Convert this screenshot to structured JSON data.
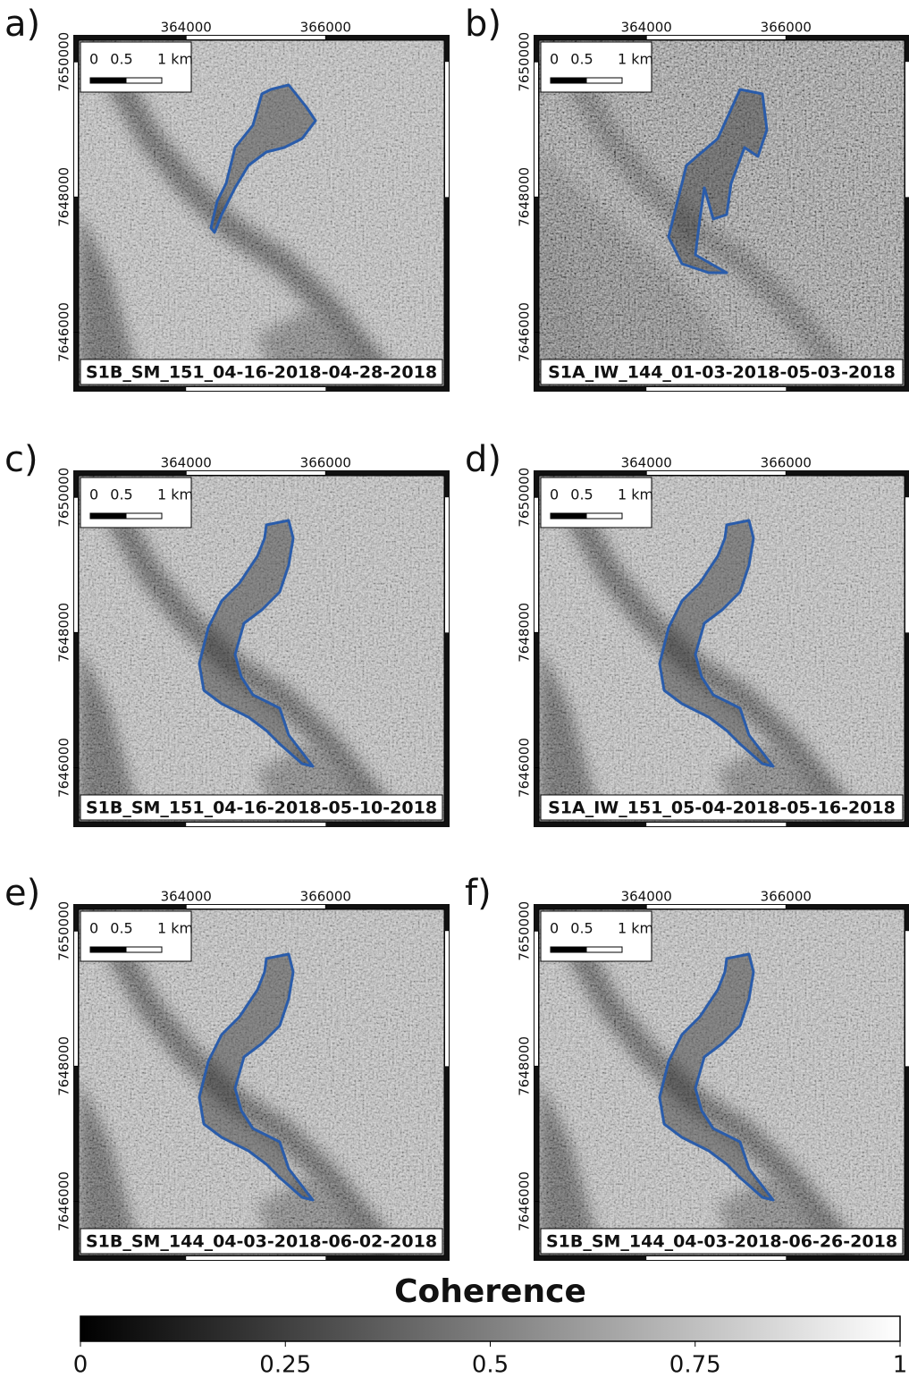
{
  "panels": [
    {
      "label": "a)",
      "caption": "S1B_SM_151_04-16-2018-04-28-2018"
    },
    {
      "label": "b)",
      "caption": "S1A_IW_144_01-03-2018-05-03-2018"
    },
    {
      "label": "c)",
      "caption": "S1B_SM_151_04-16-2018-05-10-2018"
    },
    {
      "label": "d)",
      "caption": "S1A_IW_151_05-04-2018-05-16-2018"
    },
    {
      "label": "e)",
      "caption": "S1B_SM_144_04-03-2018-06-02-2018"
    },
    {
      "label": "f)",
      "caption": "S1B_SM_144_04-03-2018-06-26-2018"
    }
  ],
  "map_axes": {
    "xlim": [
      362460,
      367700
    ],
    "xticks": [
      364000,
      366000
    ],
    "ylim": [
      7645200,
      7650320
    ],
    "yticks": [
      7650000,
      7648000,
      7646000
    ]
  },
  "scale_bar": {
    "labels": [
      "0",
      "0.5",
      "1 km"
    ]
  },
  "colorbar": {
    "title": "Coherence",
    "lim": [
      0,
      1
    ],
    "ticks": [
      0,
      0.25,
      0.5,
      0.75,
      1
    ]
  }
}
